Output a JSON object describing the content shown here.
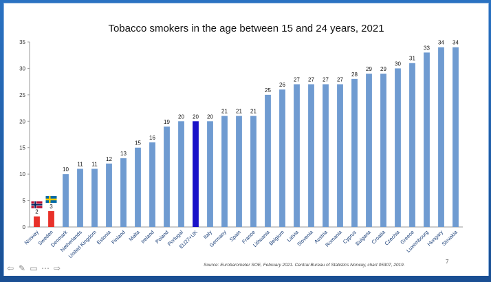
{
  "chart_data": {
    "type": "bar",
    "title": "Tobacco smokers in the age between 15 and 24 years, 2021",
    "xlabel": "",
    "ylabel": "",
    "ylim": [
      0,
      35
    ],
    "yticks": [
      0,
      5,
      10,
      15,
      20,
      25,
      30,
      35
    ],
    "grid": false,
    "legend": "none",
    "categories": [
      "Norway",
      "Sweden",
      "Denmark",
      "Netherlands",
      "United Kingdom",
      "Estonia",
      "Finland",
      "Malta",
      "Ireland",
      "Poland",
      "Portugal",
      "EU27+UK",
      "Italy",
      "Germany",
      "Spain",
      "France",
      "Lithuania",
      "Belgium",
      "Latvia",
      "Slovenia",
      "Austria",
      "Romania",
      "Cyprus",
      "Bulgaria",
      "Croatia",
      "Czechia",
      "Greece",
      "Luxembourg",
      "Hungary",
      "Slovakia"
    ],
    "values": [
      2,
      3,
      10,
      11,
      11,
      12,
      13,
      15,
      16,
      19,
      20,
      20,
      20,
      21,
      21,
      21,
      25,
      26,
      27,
      27,
      27,
      27,
      28,
      29,
      29,
      30,
      31,
      33,
      34,
      34
    ],
    "colors": {
      "default": "#6f9bd1",
      "highlight_nordic": "#e8312a",
      "highlight_eu": "#1a12c8"
    },
    "bar_color_keys": [
      "highlight_nordic",
      "highlight_nordic",
      "default",
      "default",
      "default",
      "default",
      "default",
      "default",
      "default",
      "default",
      "default",
      "highlight_eu",
      "default",
      "default",
      "default",
      "default",
      "default",
      "default",
      "default",
      "default",
      "default",
      "default",
      "default",
      "default",
      "default",
      "default",
      "default",
      "default",
      "default",
      "default"
    ],
    "flags": [
      {
        "category": "Norway",
        "icon": "norway-flag-icon"
      },
      {
        "category": "Sweden",
        "icon": "sweden-flag-icon"
      }
    ]
  },
  "footer": {
    "source": "Source: Eurobarometer SOE, February 2021. Central Bureau of Statistics Norway, chart 05307, 2019.",
    "page_number": "7"
  },
  "nav": {
    "icons": [
      "arrow-left-icon",
      "pen-icon",
      "slides-icon",
      "menu-icon",
      "arrow-right-icon"
    ],
    "glyphs": [
      "⇦",
      "✎",
      "▭",
      "⋯",
      "⇨"
    ]
  }
}
